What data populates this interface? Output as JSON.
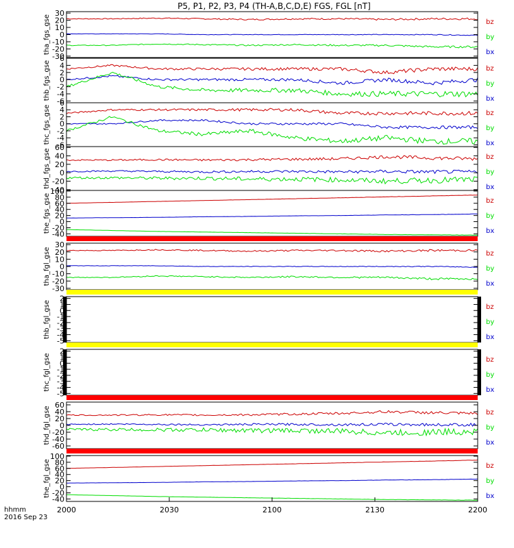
{
  "title": "P5, P1, P2, P3, P4 (TH-A,B,C,D,E) FGS, FGL [nT]",
  "footer": {
    "time_label": "hhmm",
    "date_label": "2016 Sep 23"
  },
  "colors": {
    "bz": "#cc0000",
    "by": "#00dd00",
    "bx": "#0000cc",
    "red_bar": "#ff0000",
    "yellow_bar": "#ffff00"
  },
  "chart_data": {
    "type": "line",
    "x_ticks": [
      "2000",
      "2030",
      "2100",
      "2130",
      "2200"
    ],
    "legend": [
      "bz",
      "by",
      "bx"
    ],
    "panels": [
      {
        "ylabel": "tha_fgs_gse",
        "ylim": [
          -32,
          32
        ],
        "yticks": [
          "30",
          "20",
          "10",
          "0",
          "-10",
          "-20",
          "-30"
        ],
        "ytick_values": [
          30,
          20,
          10,
          0,
          -10,
          -20,
          -30
        ],
        "series": {
          "bz": [
            22,
            22,
            23,
            22,
            21,
            22,
            22,
            21,
            22,
            22
          ],
          "bx": [
            1,
            1,
            1,
            0,
            0,
            0,
            0,
            0,
            0,
            -1
          ],
          "by": [
            -15,
            -15,
            -13,
            -14,
            -15,
            -14,
            -15,
            -15,
            -17,
            -17
          ]
        },
        "bar_below": "none",
        "side_marks": false,
        "has_data": true,
        "noise": [
          1.0,
          0.4,
          1.0
        ]
      },
      {
        "ylabel": "thb_fgs_gse",
        "ylim": [
          -6.5,
          6
        ],
        "yticks": [
          "6",
          "4",
          "2",
          "0",
          "-2",
          "-4",
          "-6"
        ],
        "ytick_values": [
          6,
          4,
          2,
          0,
          -2,
          -4,
          -6
        ],
        "series": {
          "bz": [
            3,
            4,
            3,
            3,
            3,
            3,
            3,
            2,
            3,
            3
          ],
          "bx": [
            0,
            1,
            0,
            0,
            0,
            0,
            -1,
            0,
            -1,
            0
          ],
          "by": [
            -2,
            2,
            -2,
            -3,
            -3,
            -3,
            -4,
            -4,
            -4,
            -4
          ]
        },
        "bar_below": "none",
        "side_marks": false,
        "has_data": true,
        "noise": [
          0.4,
          0.4,
          0.6
        ]
      },
      {
        "ylabel": "thc_fgs_gse",
        "ylim": [
          -6.5,
          6
        ],
        "yticks": [
          "6",
          "4",
          "2",
          "0",
          "-2",
          "-4",
          "-6"
        ],
        "ytick_values": [
          6,
          4,
          2,
          0,
          -2,
          -4,
          -6
        ],
        "series": {
          "bz": [
            3,
            4,
            4,
            4,
            4,
            4,
            3,
            3,
            3,
            3
          ],
          "bx": [
            0,
            0,
            1,
            1,
            0,
            0,
            0,
            -1,
            -1,
            -1
          ],
          "by": [
            -2,
            2,
            -2,
            -3,
            -2,
            -4,
            -5,
            -4,
            -5,
            -5
          ]
        },
        "bar_below": "none",
        "side_marks": false,
        "has_data": true,
        "noise": [
          0.4,
          0.3,
          0.6
        ]
      },
      {
        "ylabel": "thd_fgs_gse",
        "ylim": [
          -42,
          62
        ],
        "yticks": [
          "60",
          "40",
          "20",
          "0",
          "-20",
          "-40"
        ],
        "ytick_values": [
          60,
          40,
          20,
          0,
          -20,
          -40
        ],
        "series": {
          "bz": [
            30,
            30,
            31,
            30,
            31,
            32,
            33,
            38,
            35,
            33
          ],
          "bx": [
            3,
            4,
            3,
            2,
            3,
            3,
            2,
            3,
            2,
            2
          ],
          "by": [
            -12,
            -12,
            -13,
            -13,
            -15,
            -15,
            -17,
            -20,
            -18,
            -16
          ]
        },
        "bar_below": "none",
        "side_marks": false,
        "has_data": true,
        "noise": [
          3,
          3,
          5
        ]
      },
      {
        "ylabel": "the_fgs_gse",
        "ylim": [
          -48,
          102
        ],
        "yticks": [
          "100",
          "80",
          "60",
          "40",
          "20",
          "0",
          "-20",
          "-40"
        ],
        "ytick_values": [
          100,
          80,
          60,
          40,
          20,
          0,
          -20,
          -40
        ],
        "series": {
          "bz": [
            60,
            63,
            66,
            69,
            72,
            75,
            78,
            81,
            84,
            87
          ],
          "bx": [
            12,
            13,
            14,
            16,
            17,
            19,
            20,
            22,
            23,
            25
          ],
          "by": [
            -26,
            -29,
            -32,
            -34,
            -36,
            -38,
            -40,
            -42,
            -43,
            -44
          ]
        },
        "bar_below": "red",
        "side_marks": false,
        "has_data": true,
        "noise": [
          0.3,
          0.3,
          0.3
        ]
      },
      {
        "ylabel": "tha_fgl_gse",
        "ylim": [
          -32,
          32
        ],
        "yticks": [
          "30",
          "20",
          "10",
          "0",
          "-10",
          "-20",
          "-30"
        ],
        "ytick_values": [
          30,
          20,
          10,
          0,
          -10,
          -20,
          -30
        ],
        "series": {
          "bz": [
            22,
            22,
            23,
            22,
            21,
            22,
            22,
            21,
            22,
            22
          ],
          "bx": [
            1,
            1,
            1,
            0,
            0,
            0,
            0,
            0,
            0,
            -1
          ],
          "by": [
            -15,
            -15,
            -13,
            -14,
            -15,
            -14,
            -15,
            -15,
            -17,
            -17
          ]
        },
        "bar_below": "yellow",
        "side_marks": false,
        "has_data": true,
        "noise": [
          1.0,
          0.4,
          1.0
        ]
      },
      {
        "ylabel": "thb_fgl_gse",
        "ylim": [
          -5.3,
          2.3
        ],
        "yticks": [
          "2",
          "1",
          "0",
          "-1",
          "-2",
          "-3",
          "-4",
          "-5"
        ],
        "ytick_values": [
          2,
          1,
          0,
          -1,
          -2,
          -3,
          -4,
          -5
        ],
        "series": null,
        "bar_below": "yellow",
        "side_marks": true,
        "has_data": false
      },
      {
        "ylabel": "thc_fgl_gse",
        "ylim": [
          -5.3,
          2.3
        ],
        "yticks": [
          "2",
          "1",
          "0",
          "-1",
          "-2",
          "-3",
          "-4",
          "-5"
        ],
        "ytick_values": [
          2,
          1,
          0,
          -1,
          -2,
          -3,
          -4,
          -5
        ],
        "series": null,
        "bar_below": "red",
        "side_marks": true,
        "has_data": false
      },
      {
        "ylabel": "thd_fgl_gse",
        "ylim": [
          -68,
          68
        ],
        "yticks": [
          "60",
          "40",
          "20",
          "0",
          "-20",
          "-40",
          "-60"
        ],
        "ytick_values": [
          60,
          40,
          20,
          0,
          -20,
          -40,
          -60
        ],
        "series": {
          "bz": [
            30,
            30,
            31,
            30,
            31,
            33,
            35,
            40,
            37,
            34
          ],
          "bx": [
            3,
            4,
            3,
            2,
            3,
            3,
            2,
            3,
            2,
            2
          ],
          "by": [
            -12,
            -12,
            -13,
            -13,
            -15,
            -15,
            -17,
            -22,
            -20,
            -17
          ]
        },
        "bar_below": "red",
        "side_marks": false,
        "has_data": true,
        "noise": [
          3,
          3,
          7
        ]
      },
      {
        "ylabel": "the_fgl_gse",
        "ylim": [
          -48,
          102
        ],
        "yticks": [
          "100",
          "80",
          "60",
          "40",
          "20",
          "0",
          "-20",
          "-40"
        ],
        "ytick_values": [
          100,
          80,
          60,
          40,
          20,
          0,
          -20,
          -40
        ],
        "series": {
          "bz": [
            60,
            63,
            66,
            69,
            72,
            75,
            78,
            81,
            84,
            87
          ],
          "bx": [
            12,
            13,
            14,
            16,
            17,
            19,
            20,
            22,
            23,
            25
          ],
          "by": [
            -26,
            -29,
            -32,
            -34,
            -36,
            -38,
            -40,
            -42,
            -43,
            -44
          ]
        },
        "bar_below": "none",
        "side_marks": false,
        "has_data": true,
        "noise": [
          0.3,
          0.3,
          0.3
        ]
      }
    ]
  }
}
